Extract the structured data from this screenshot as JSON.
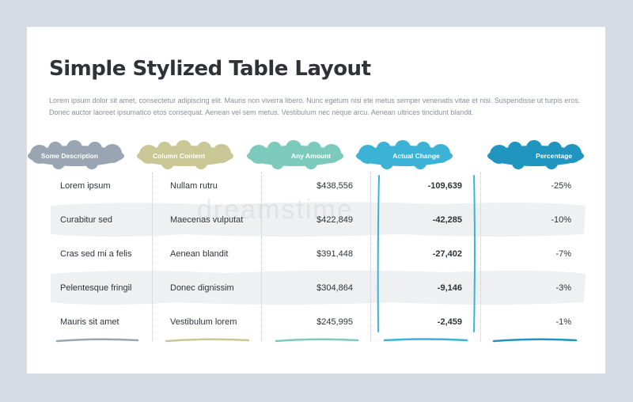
{
  "title": "Simple Stylized Table Layout",
  "description": "Lorem ipsum dolor sit amet, consectetur adipiscing elit. Mauris non viverra libero. Nunc egetum nisi ete metus semper venenatis vitae et nisi. Suspendisse ut turpis eros. Donec auctor laoreet ipsumatico etos consequat. Aenean vel sem metus. Vestibulum nec neque arcu. Aenean ultrices tincidunt blandit.",
  "watermark": "dreamstime",
  "colors": {
    "col1": "#9aa5b4",
    "col2": "#c9c795",
    "col3": "#7ccabb",
    "col4": "#3cb3d6",
    "col5": "#1f95bf",
    "stripe": "#eff0f2"
  },
  "table": {
    "headers": [
      "Some Description",
      "Column Content",
      "Any Amount",
      "Actual Change",
      "Percentage"
    ],
    "rows": [
      [
        "Lorem ipsum",
        "Nullam rutru",
        "$438,556",
        "-109,639",
        "-25%"
      ],
      [
        "Curabitur sed",
        "Maecenas vulputat",
        "$422,849",
        "-42,285",
        "-10%"
      ],
      [
        "Cras sed mi a felis",
        "Aenean blandit",
        "$391,448",
        "-27,402",
        "-7%"
      ],
      [
        "Pelentesque fringil",
        "Donec dignissim",
        "$304,864",
        "-9,146",
        "-3%"
      ],
      [
        "Mauris sit amet",
        "Vestibulum lorem",
        "$245,995",
        "-2,459",
        "-1%"
      ]
    ]
  }
}
